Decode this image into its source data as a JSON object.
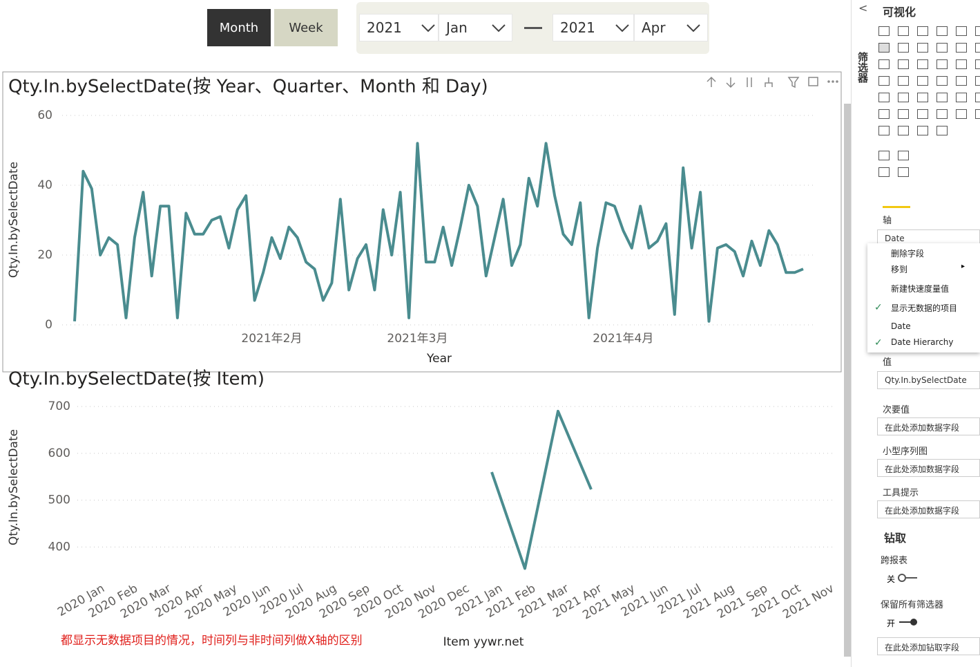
{
  "chart_data": [
    {
      "type": "line",
      "title": "Qty.In.bySelectDate(按 Year、Quarter、Month 和 Day)",
      "y_axis_label": "Qty.In.bySelectDate",
      "x_axis_label": "Year",
      "color": "#4a8c8f",
      "grid": true,
      "ylim": [
        0,
        60
      ],
      "yticks": [
        0,
        20,
        40,
        60
      ],
      "categories": [
        null,
        null,
        null,
        null,
        null,
        null,
        null,
        null,
        null,
        null,
        null,
        null,
        null,
        null,
        null,
        null,
        null,
        null,
        null,
        null,
        null,
        null,
        null,
        "2021年2月",
        null,
        null,
        null,
        null,
        null,
        null,
        null,
        null,
        null,
        null,
        null,
        null,
        null,
        null,
        null,
        null,
        "2021年3月",
        null,
        null,
        null,
        null,
        null,
        null,
        null,
        null,
        null,
        null,
        null,
        null,
        null,
        null,
        null,
        null,
        null,
        null,
        null,
        null,
        null,
        null,
        null,
        "2021年4月",
        null,
        null,
        null,
        null,
        null,
        null,
        null,
        null,
        null,
        null,
        null,
        null,
        null,
        null,
        null,
        null,
        null,
        null,
        null,
        null,
        null
      ],
      "values": [
        1,
        44,
        39,
        20,
        25,
        23,
        2,
        25,
        38,
        14,
        34,
        34,
        2,
        32,
        26,
        26,
        30,
        31,
        22,
        33,
        37,
        7,
        15,
        25,
        19,
        28,
        25,
        18,
        16,
        7,
        12,
        36,
        10,
        19,
        23,
        10,
        33,
        20,
        38,
        2,
        52,
        18,
        18,
        28,
        17,
        28,
        40,
        34,
        14,
        25,
        36,
        17,
        23,
        42,
        34,
        52,
        37,
        26,
        23,
        35,
        2,
        22,
        35,
        34,
        27,
        22,
        34,
        22,
        24,
        29,
        3,
        45,
        22,
        38,
        1,
        22,
        23,
        21,
        14,
        24,
        17,
        27,
        23,
        15,
        15,
        16
      ]
    },
    {
      "type": "line",
      "title": "Qty.In.bySelectDate(按 Item)",
      "y_axis_label": "Qty.In.bySelectDate",
      "x_axis_label": "Item yywr.net",
      "color": "#4a8c8f",
      "grid": true,
      "ylim": [
        340,
        715
      ],
      "yticks": [
        400,
        500,
        600,
        700
      ],
      "categories": [
        "2020 Jan",
        "2020 Feb",
        "2020 Mar",
        "2020 Apr",
        "2020 May",
        "2020 Jun",
        "2020 Jul",
        "2020 Aug",
        "2020 Sep",
        "2020 Oct",
        "2020 Nov",
        "2020 Dec",
        "2021 Jan",
        "2021 Feb",
        "2021 Mar",
        "2021 Apr",
        "2021 May",
        "2021 Jun",
        "2021 Jul",
        "2021 Aug",
        "2021 Sep",
        "2021 Oct",
        "2021 Nov"
      ],
      "values": [
        null,
        null,
        null,
        null,
        null,
        null,
        null,
        null,
        null,
        null,
        null,
        null,
        560,
        354,
        690,
        523,
        null,
        null,
        null,
        null,
        null,
        null,
        null
      ],
      "annotation": "都显示无数据项目的情况，时间列与非时间列做X轴的区别"
    }
  ],
  "controls": {
    "buttons": [
      "Month",
      "Week"
    ],
    "slicer": [
      "2021",
      "Jan",
      "2021",
      "Apr"
    ]
  },
  "panel": {
    "filters_tab": "筛选器",
    "title": "可视化",
    "axis_label": "轴",
    "axis_field": "Date",
    "menu": [
      "删除字段",
      "移到",
      "新建快速度量值",
      "显示无数据的项目",
      "Date",
      "Date Hierarchy"
    ],
    "values_label": "值",
    "values_field": "Qty.In.bySelectDate",
    "secondary_label": "次要值",
    "secondary_field": "在此处添加数据字段",
    "small_label": "小型序列图",
    "small_field": "在此处添加数据字段",
    "tooltip_label": "工具提示",
    "tooltip_field": "在此处添加数据字段",
    "drill_title": "钻取",
    "cross_report": "跨报表",
    "cross_state": "关",
    "keep_filters": "保留所有筛选器",
    "keep_state": "开",
    "drill_field": "在此处添加钻取字段"
  }
}
